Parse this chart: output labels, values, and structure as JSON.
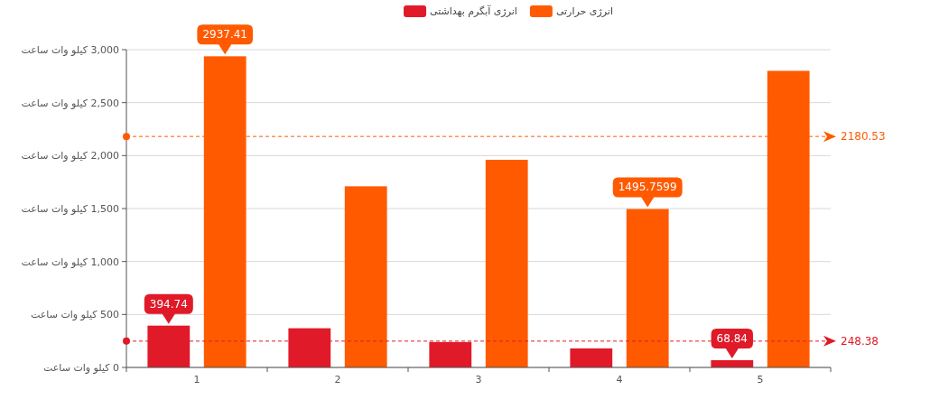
{
  "chart_data": {
    "type": "bar",
    "categories": [
      "1",
      "2",
      "3",
      "4",
      "5"
    ],
    "series": [
      {
        "name": "انرژی آبگرم بهداشتی",
        "color": "#e01a28",
        "values": [
          394.74,
          370,
          240,
          180,
          68.84
        ],
        "value_labels": [
          "394.74",
          null,
          null,
          null,
          "68.84"
        ]
      },
      {
        "name": "انرژی حرارتی",
        "color": "#ff5a00",
        "values": [
          2937.41,
          1710,
          1960,
          1495.7599,
          2800
        ],
        "value_labels": [
          "2937.41",
          null,
          null,
          "1495.7599",
          null
        ]
      }
    ],
    "ylim": [
      0,
      3000
    ],
    "yticks": [
      {
        "value": 0,
        "label": "0 کیلو وات ساعت"
      },
      {
        "value": 500,
        "label": "500 کیلو وات ساعت"
      },
      {
        "value": 1000,
        "label": "1,000 کیلو وات ساعت"
      },
      {
        "value": 1500,
        "label": "1,500 کیلو وات ساعت"
      },
      {
        "value": 2000,
        "label": "2,000 کیلو وات ساعت"
      },
      {
        "value": 2500,
        "label": "2,500 کیلو وات ساعت"
      },
      {
        "value": 3000,
        "label": "3,000 کیلو وات ساعت"
      }
    ],
    "ref_lines": [
      {
        "axis": "y",
        "value": 248.38,
        "label": "248.38",
        "color": "#e01a28",
        "line_style": "dashed"
      },
      {
        "axis": "y",
        "value": 2180.53,
        "label": "2180.53",
        "color": "#ff5a00",
        "line_style": "dashed"
      }
    ],
    "grid": "y",
    "legend": "top"
  }
}
